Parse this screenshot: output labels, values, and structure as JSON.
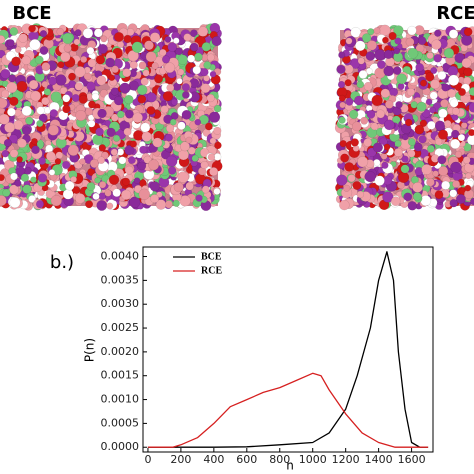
{
  "panels": {
    "left_label": "BCE",
    "right_label": "RCE"
  },
  "chart_data": {
    "type": "line",
    "panel_label": "b.)",
    "x_label": "n",
    "y_label": "P(n)",
    "xlim": [
      -30,
      1730
    ],
    "ylim": [
      -0.0001,
      0.0042
    ],
    "xticks": [
      0,
      200,
      400,
      600,
      800,
      1000,
      1200,
      1400,
      1600
    ],
    "yticks": [
      {
        "value": 0,
        "label": "0.0000"
      },
      {
        "value": 0.0005,
        "label": "0.0005"
      },
      {
        "value": 0.001,
        "label": "0.0010"
      },
      {
        "value": 0.0015,
        "label": "0.0015"
      },
      {
        "value": 0.002,
        "label": "0.0020"
      },
      {
        "value": 0.0025,
        "label": "0.0025"
      },
      {
        "value": 0.003,
        "label": "0.0030"
      },
      {
        "value": 0.0035,
        "label": "0.0035"
      },
      {
        "value": 0.004,
        "label": "0.0040"
      }
    ],
    "legend": "upper left",
    "series": [
      {
        "name": "BCE",
        "color": "#000000",
        "x": [
          0,
          200,
          400,
          600,
          800,
          1000,
          1100,
          1200,
          1270,
          1350,
          1400,
          1450,
          1490,
          1520,
          1560,
          1600,
          1650,
          1700
        ],
        "values": [
          0,
          0,
          0,
          1e-05,
          5e-05,
          0.0001,
          0.0003,
          0.0008,
          0.0015,
          0.0025,
          0.0035,
          0.0041,
          0.0035,
          0.002,
          0.0008,
          0.0001,
          0,
          0
        ]
      },
      {
        "name": "RCE",
        "color": "#d62020",
        "x": [
          0,
          150,
          200,
          300,
          400,
          500,
          600,
          700,
          800,
          900,
          1000,
          1050,
          1100,
          1200,
          1300,
          1400,
          1500,
          1700
        ],
        "values": [
          0,
          0,
          5e-05,
          0.0002,
          0.0005,
          0.00085,
          0.001,
          0.00115,
          0.00125,
          0.0014,
          0.00155,
          0.0015,
          0.0012,
          0.0007,
          0.0003,
          0.0001,
          0,
          0
        ]
      }
    ]
  }
}
